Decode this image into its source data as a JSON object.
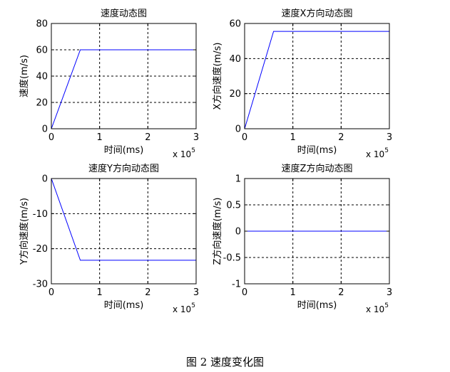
{
  "caption": "图 2  速度变化图",
  "chart_data": [
    {
      "type": "line",
      "title": "速度动态图",
      "xlabel": "时间(ms)",
      "ylabel": "速度(m/s)",
      "x_multiplier": "x 10",
      "x_exponent": "5",
      "xlim": [
        0,
        3
      ],
      "ylim": [
        0,
        80
      ],
      "xticks": [
        0,
        1,
        2,
        3
      ],
      "yticks": [
        0,
        20,
        40,
        60,
        80
      ],
      "grid": true,
      "color": "#0000ff",
      "series": [
        {
          "x": [
            0,
            0.6,
            3
          ],
          "y": [
            0,
            60,
            60
          ]
        }
      ]
    },
    {
      "type": "line",
      "title": "速度X方向动态图",
      "xlabel": "时间(ms)",
      "ylabel": "X方向速度(m/s)",
      "x_multiplier": "x 10",
      "x_exponent": "5",
      "xlim": [
        0,
        3
      ],
      "ylim": [
        0,
        60
      ],
      "xticks": [
        0,
        1,
        2,
        3
      ],
      "yticks": [
        0,
        20,
        40,
        60
      ],
      "grid": true,
      "color": "#0000ff",
      "series": [
        {
          "x": [
            0,
            0.6,
            3
          ],
          "y": [
            0,
            55.5,
            55.5
          ]
        }
      ]
    },
    {
      "type": "line",
      "title": "速度Y方向动态图",
      "xlabel": "时间(ms)",
      "ylabel": "Y方向速度(m/s)",
      "x_multiplier": "x 10",
      "x_exponent": "5",
      "xlim": [
        0,
        3
      ],
      "ylim": [
        -30,
        0
      ],
      "xticks": [
        0,
        1,
        2,
        3
      ],
      "yticks": [
        -30,
        -20,
        -10,
        0
      ],
      "grid": true,
      "color": "#0000ff",
      "series": [
        {
          "x": [
            0,
            0.6,
            3
          ],
          "y": [
            0,
            -23.3,
            -23.3
          ]
        }
      ]
    },
    {
      "type": "line",
      "title": "速度Z方向动态图",
      "xlabel": "时间(ms)",
      "ylabel": "Z方向速度(m/s)",
      "x_multiplier": "x 10",
      "x_exponent": "5",
      "xlim": [
        0,
        3
      ],
      "ylim": [
        -1,
        1
      ],
      "xticks": [
        0,
        1,
        2,
        3
      ],
      "yticks": [
        -1,
        -0.5,
        0,
        0.5,
        1
      ],
      "grid": true,
      "color": "#0000ff",
      "series": [
        {
          "x": [
            0,
            3
          ],
          "y": [
            0,
            0
          ]
        }
      ]
    }
  ]
}
